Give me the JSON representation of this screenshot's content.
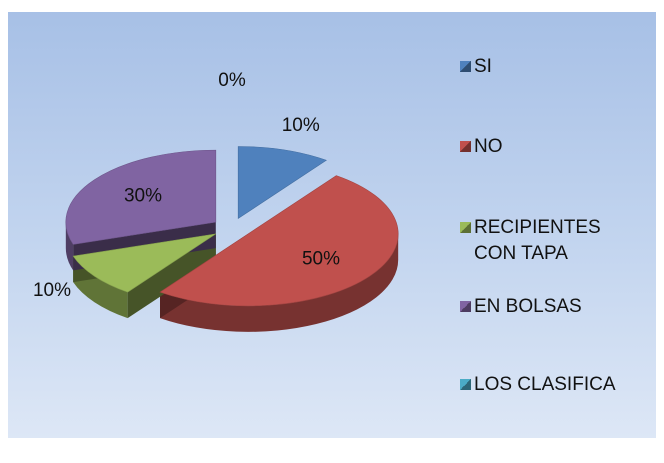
{
  "chart_data": {
    "type": "pie",
    "categories": [
      "SI",
      "NO",
      "RECIPIENTES CON TAPA",
      "EN BOLSAS",
      "LOS CLASIFICA"
    ],
    "values": [
      10,
      50,
      10,
      30,
      0
    ],
    "value_labels": [
      "10%",
      "50%",
      "10%",
      "30%",
      "0%"
    ],
    "colors": [
      "#4f81bd",
      "#c0504d",
      "#9bbb59",
      "#8064a2",
      "#4bacc6"
    ],
    "legend": "right"
  }
}
